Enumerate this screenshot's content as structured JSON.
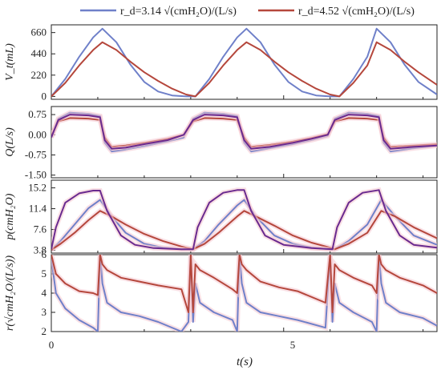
{
  "legend": {
    "series_a": "r_d=3.14 √(cmH₂O)/(L/s)",
    "series_b": "r_d=4.52 √(cmH₂O)/(L/s)"
  },
  "colors": {
    "blue": "#6f80c9",
    "red": "#b5473c",
    "purple": "#6a2a8f",
    "pink": "#f4c6d0"
  },
  "x_axis": {
    "label": "t(s)",
    "ticks": [
      "0",
      "5"
    ]
  },
  "chart_data": [
    {
      "type": "line",
      "panel": "volume",
      "ylabel": "V_t(mL)",
      "yticks": [
        "660",
        "440",
        "220",
        "0"
      ],
      "ylim": [
        -30,
        740
      ],
      "xlim": [
        0,
        8.3
      ],
      "series": [
        {
          "name": "r_d=3.14 √(cmH₂O)/(L/s)",
          "color": "#6f80c9",
          "x": [
            0,
            0.3,
            0.6,
            0.9,
            1.1,
            1.4,
            1.7,
            2.0,
            2.3,
            2.6,
            2.9,
            3.1,
            3.4,
            3.7,
            4.0,
            4.2,
            4.5,
            4.8,
            5.1,
            5.4,
            5.7,
            6.0,
            6.2,
            6.5,
            6.8,
            7.0,
            7.3,
            7.6,
            7.9,
            8.3
          ],
          "y": [
            0,
            180,
            410,
            610,
            700,
            560,
            330,
            150,
            50,
            10,
            0,
            0,
            180,
            410,
            610,
            700,
            560,
            330,
            150,
            50,
            10,
            0,
            0,
            180,
            410,
            700,
            560,
            330,
            150,
            20
          ]
        },
        {
          "name": "r_d=4.52 √(cmH₂O)/(L/s)",
          "color": "#b5473c",
          "x": [
            0,
            0.3,
            0.6,
            0.9,
            1.1,
            1.4,
            1.7,
            2.0,
            2.3,
            2.6,
            2.9,
            3.1,
            3.4,
            3.7,
            4.0,
            4.2,
            4.5,
            4.8,
            5.1,
            5.4,
            5.7,
            6.0,
            6.2,
            6.5,
            6.8,
            7.0,
            7.3,
            7.6,
            7.9,
            8.3
          ],
          "y": [
            0,
            140,
            320,
            480,
            560,
            480,
            360,
            250,
            160,
            80,
            20,
            0,
            140,
            320,
            480,
            560,
            480,
            360,
            250,
            160,
            80,
            20,
            0,
            140,
            320,
            560,
            480,
            360,
            250,
            120
          ]
        }
      ]
    },
    {
      "type": "line",
      "panel": "flow",
      "ylabel": "Q(L/s)",
      "yticks": [
        "0.75",
        "0.00",
        "-0.75",
        "-1.50"
      ],
      "ylim": [
        -1.6,
        1.05
      ],
      "xlim": [
        0,
        8.3
      ],
      "series": [
        {
          "name": "",
          "color": "#6f80c9",
          "x": [
            0,
            0.15,
            0.4,
            0.8,
            1.05,
            1.15,
            1.3,
            1.6,
            2.0,
            2.5,
            2.85,
            3.05,
            3.3,
            3.7,
            4.0,
            4.15,
            4.3,
            4.7,
            5.2,
            5.6,
            5.95,
            6.1,
            6.4,
            6.8,
            7.05,
            7.15,
            7.3,
            7.8,
            8.3
          ],
          "y": [
            -0.1,
            0.6,
            0.82,
            0.78,
            0.7,
            -0.3,
            -0.62,
            -0.55,
            -0.42,
            -0.25,
            -0.1,
            0.6,
            0.82,
            0.78,
            0.7,
            -0.3,
            -0.62,
            -0.5,
            -0.35,
            -0.2,
            -0.05,
            0.6,
            0.82,
            0.78,
            0.7,
            -0.3,
            -0.62,
            -0.5,
            -0.4
          ]
        },
        {
          "name": "",
          "color": "#b5473c",
          "x": [
            0,
            0.15,
            0.4,
            0.8,
            1.05,
            1.15,
            1.3,
            1.6,
            2.0,
            2.5,
            2.85,
            3.05,
            3.3,
            3.7,
            4.0,
            4.15,
            4.3,
            4.7,
            5.2,
            5.6,
            5.95,
            6.1,
            6.4,
            6.8,
            7.05,
            7.15,
            7.3,
            7.8,
            8.3
          ],
          "y": [
            -0.05,
            0.5,
            0.62,
            0.6,
            0.55,
            -0.1,
            -0.45,
            -0.4,
            -0.3,
            -0.15,
            0.0,
            0.5,
            0.62,
            0.6,
            0.55,
            -0.1,
            -0.45,
            -0.38,
            -0.25,
            -0.12,
            0.02,
            0.5,
            0.62,
            0.6,
            0.55,
            -0.1,
            -0.45,
            -0.4,
            -0.35
          ]
        },
        {
          "name": "",
          "color": "#6a2a8f",
          "x": [
            0,
            0.15,
            0.4,
            0.8,
            1.05,
            1.15,
            1.3,
            1.6,
            2.0,
            2.5,
            2.85,
            3.05,
            3.3,
            3.7,
            4.0,
            4.15,
            4.3,
            4.7,
            5.2,
            5.6,
            5.95,
            6.1,
            6.4,
            6.8,
            7.05,
            7.15,
            7.3,
            7.8,
            8.3
          ],
          "y": [
            -0.1,
            0.55,
            0.75,
            0.72,
            0.65,
            -0.2,
            -0.52,
            -0.48,
            -0.35,
            -0.2,
            0.0,
            0.55,
            0.75,
            0.72,
            0.65,
            -0.2,
            -0.52,
            -0.45,
            -0.3,
            -0.15,
            0.0,
            0.55,
            0.75,
            0.72,
            0.65,
            -0.2,
            -0.52,
            -0.45,
            -0.4
          ]
        }
      ]
    },
    {
      "type": "line",
      "panel": "pressure",
      "ylabel": "p(cmH₂O)",
      "yticks": [
        "15.2",
        "11.4",
        "7.6",
        "3.8"
      ],
      "ylim": [
        3.3,
        16.6
      ],
      "xlim": [
        0,
        8.3
      ],
      "series": [
        {
          "name": "",
          "color": "#6f80c9",
          "x": [
            0,
            0.2,
            0.5,
            0.8,
            1.05,
            1.3,
            1.6,
            2.0,
            2.4,
            2.8,
            3.05,
            3.3,
            3.6,
            4.0,
            4.15,
            4.4,
            4.8,
            5.2,
            5.6,
            6.0,
            6.1,
            6.4,
            6.8,
            7.1,
            7.4,
            7.8,
            8.3
          ],
          "y": [
            3.9,
            5.5,
            8.5,
            11.5,
            13.0,
            10.0,
            7.0,
            5.0,
            4.3,
            4.0,
            4.0,
            5.5,
            8.5,
            12.0,
            13.0,
            10.0,
            6.5,
            5.0,
            4.3,
            4.0,
            4.0,
            5.5,
            8.5,
            13.0,
            10.0,
            6.5,
            4.8
          ]
        },
        {
          "name": "",
          "color": "#b5473c",
          "x": [
            0,
            0.2,
            0.5,
            0.8,
            1.05,
            1.3,
            1.6,
            2.0,
            2.4,
            2.8,
            3.05,
            3.3,
            3.6,
            4.0,
            4.15,
            4.4,
            4.8,
            5.2,
            5.6,
            6.0,
            6.1,
            6.4,
            6.8,
            7.1,
            7.4,
            7.8,
            8.3
          ],
          "y": [
            3.9,
            5.0,
            7.0,
            9.3,
            11.0,
            10.0,
            8.5,
            6.8,
            5.5,
            4.5,
            4.0,
            5.0,
            7.0,
            10.0,
            11.0,
            10.0,
            8.3,
            6.5,
            5.2,
            4.3,
            4.0,
            5.0,
            7.0,
            11.0,
            10.0,
            8.0,
            6.0
          ]
        },
        {
          "name": "",
          "color": "#6a2a8f",
          "x": [
            0,
            0.1,
            0.3,
            0.6,
            0.9,
            1.05,
            1.2,
            1.5,
            1.8,
            2.2,
            2.8,
            3.05,
            3.15,
            3.4,
            3.7,
            4.0,
            4.15,
            4.3,
            4.6,
            5.0,
            5.6,
            6.05,
            6.15,
            6.4,
            6.7,
            7.05,
            7.2,
            7.5,
            7.8,
            8.3
          ],
          "y": [
            4.0,
            8.0,
            12.5,
            14.2,
            14.7,
            14.7,
            11.0,
            6.5,
            4.8,
            4.2,
            4.0,
            4.0,
            8.0,
            12.5,
            14.3,
            14.8,
            14.8,
            11.0,
            6.5,
            4.8,
            4.2,
            4.0,
            8.0,
            12.5,
            14.3,
            14.8,
            11.0,
            6.5,
            4.8,
            4.3
          ]
        }
      ]
    },
    {
      "type": "line",
      "panel": "resistance",
      "ylabel": "r(√cmH₂O/(L/s))",
      "yticks": [
        "6",
        "5",
        "4",
        "3",
        "2"
      ],
      "ylim": [
        2,
        6
      ],
      "xlim": [
        0,
        8.3
      ],
      "series": [
        {
          "name": "",
          "color": "#6f80c9",
          "x": [
            0,
            0.1,
            0.3,
            0.6,
            0.9,
            1.0,
            1.05,
            1.1,
            1.2,
            1.5,
            1.9,
            2.3,
            2.8,
            2.95,
            3.0,
            3.05,
            3.1,
            3.2,
            3.5,
            3.9,
            4.0,
            4.05,
            4.1,
            4.2,
            4.5,
            4.9,
            5.3,
            5.9,
            6.0,
            6.05,
            6.1,
            6.2,
            6.5,
            6.9,
            7.0,
            7.05,
            7.1,
            7.2,
            7.5,
            8.0,
            8.3
          ],
          "y": [
            5.8,
            4.0,
            3.2,
            2.6,
            2.2,
            2.0,
            6.0,
            4.5,
            3.5,
            3.0,
            2.8,
            2.5,
            2.0,
            2.5,
            6.0,
            2.5,
            4.5,
            3.5,
            3.0,
            2.6,
            2.0,
            6.0,
            4.5,
            3.5,
            3.0,
            2.8,
            2.6,
            2.2,
            6.0,
            2.5,
            4.5,
            3.5,
            3.0,
            2.5,
            2.0,
            6.0,
            4.5,
            3.5,
            3.0,
            2.7,
            2.3
          ]
        },
        {
          "name": "",
          "color": "#b5473c",
          "x": [
            0,
            0.1,
            0.3,
            0.6,
            0.9,
            1.0,
            1.05,
            1.1,
            1.2,
            1.5,
            1.9,
            2.3,
            2.8,
            2.95,
            3.0,
            3.05,
            3.1,
            3.2,
            3.5,
            3.9,
            4.0,
            4.05,
            4.1,
            4.2,
            4.5,
            4.9,
            5.3,
            5.9,
            6.0,
            6.05,
            6.1,
            6.2,
            6.5,
            6.9,
            7.0,
            7.05,
            7.1,
            7.2,
            7.5,
            8.0,
            8.3
          ],
          "y": [
            6.0,
            5.0,
            4.5,
            4.1,
            4.0,
            3.9,
            6.0,
            5.5,
            5.2,
            4.8,
            4.6,
            4.4,
            4.2,
            3.0,
            6.0,
            3.0,
            5.5,
            5.2,
            4.8,
            4.2,
            4.0,
            6.0,
            5.5,
            5.2,
            4.6,
            4.3,
            4.1,
            3.5,
            6.0,
            3.0,
            5.5,
            5.2,
            4.8,
            4.4,
            4.0,
            6.0,
            5.5,
            5.2,
            4.8,
            4.4,
            4.0
          ]
        }
      ]
    }
  ]
}
